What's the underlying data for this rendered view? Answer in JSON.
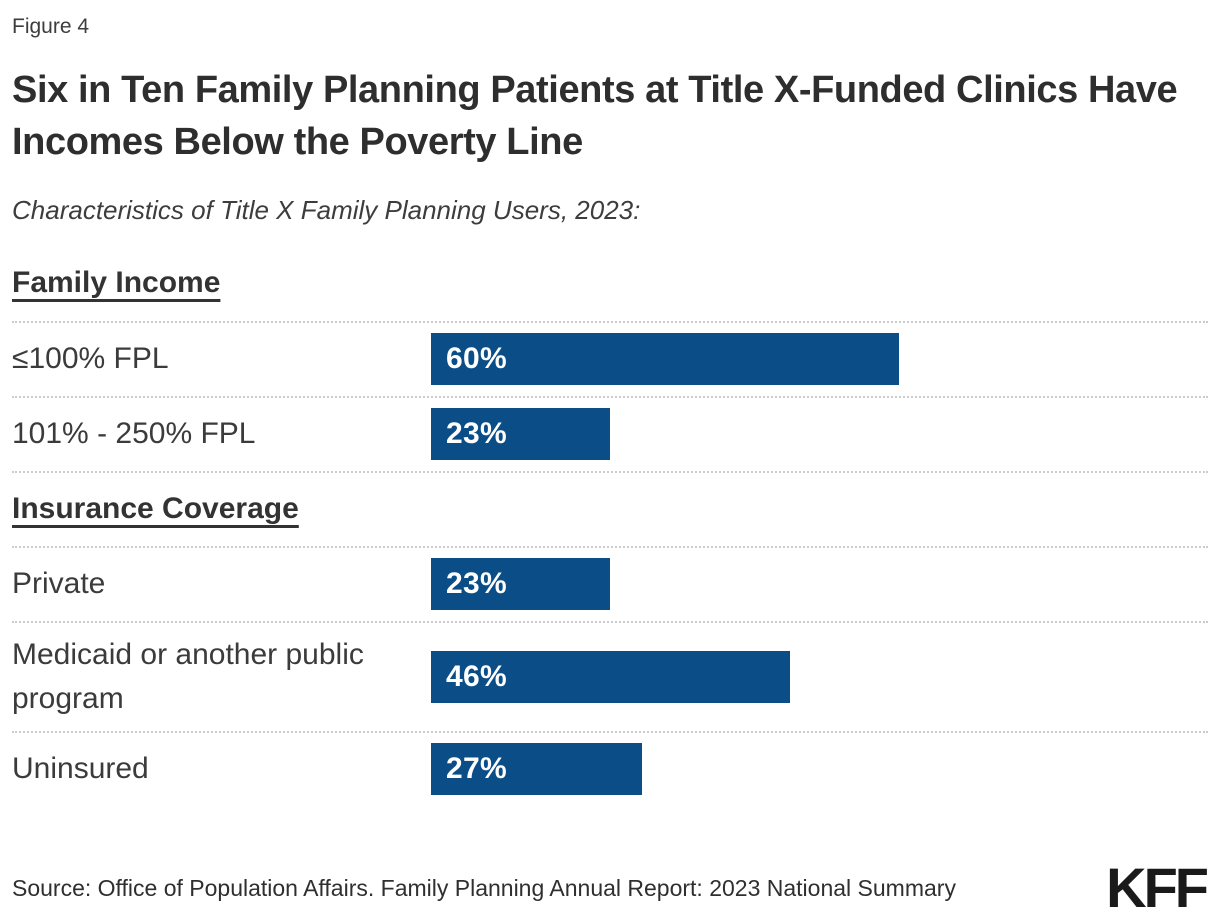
{
  "figure_label": "Figure 4",
  "title": "Six in Ten Family Planning Patients at Title X-Funded Clinics Have Incomes Below the Poverty Line",
  "subtitle": "Characteristics of Title X Family Planning Users, 2023:",
  "chart_data": {
    "type": "bar",
    "orientation": "horizontal",
    "title": "Six in Ten Family Planning Patients at Title X-Funded Clinics Have Incomes Below the Poverty Line",
    "subtitle": "Characteristics of Title X Family Planning Users, 2023:",
    "value_format": "percent",
    "xlim": [
      0,
      100
    ],
    "bar_color": "#0b4e87",
    "grid": false,
    "legend": false,
    "groups": [
      "Family Income",
      "Insurance Coverage"
    ],
    "categories": [
      "≤100% FPL",
      "101% - 250% FPL",
      "Private",
      "Medicaid or another public program",
      "Uninsured"
    ],
    "values": [
      60,
      23,
      23,
      46,
      27
    ],
    "rows": [
      {
        "kind": "heading",
        "text": "Family Income"
      },
      {
        "kind": "bar",
        "group": "Family Income",
        "label": "≤100% FPL",
        "value": 60,
        "display": "60%"
      },
      {
        "kind": "bar",
        "group": "Family Income",
        "label": "101% - 250% FPL",
        "value": 23,
        "display": "23%"
      },
      {
        "kind": "heading",
        "text": "Insurance Coverage"
      },
      {
        "kind": "bar",
        "group": "Insurance Coverage",
        "label": "Private",
        "value": 23,
        "display": "23%"
      },
      {
        "kind": "bar",
        "group": "Insurance Coverage",
        "label": "Medicaid or another public program",
        "value": 46,
        "display": "46%"
      },
      {
        "kind": "bar",
        "group": "Insurance Coverage",
        "label": "Uninsured",
        "value": 27,
        "display": "27%"
      }
    ]
  },
  "footer": {
    "source": "Source: Office of Population Affairs. Family Planning Annual Report: 2023 National Summary",
    "logo": "KFF"
  },
  "colors": {
    "bar": "#0b4e87",
    "title_text": "#2e2e2e",
    "label_text": "#3b3b3b",
    "divider": "#cccccc",
    "bar_value_text": "#ffffff",
    "logo_text": "#1a1a1a"
  }
}
